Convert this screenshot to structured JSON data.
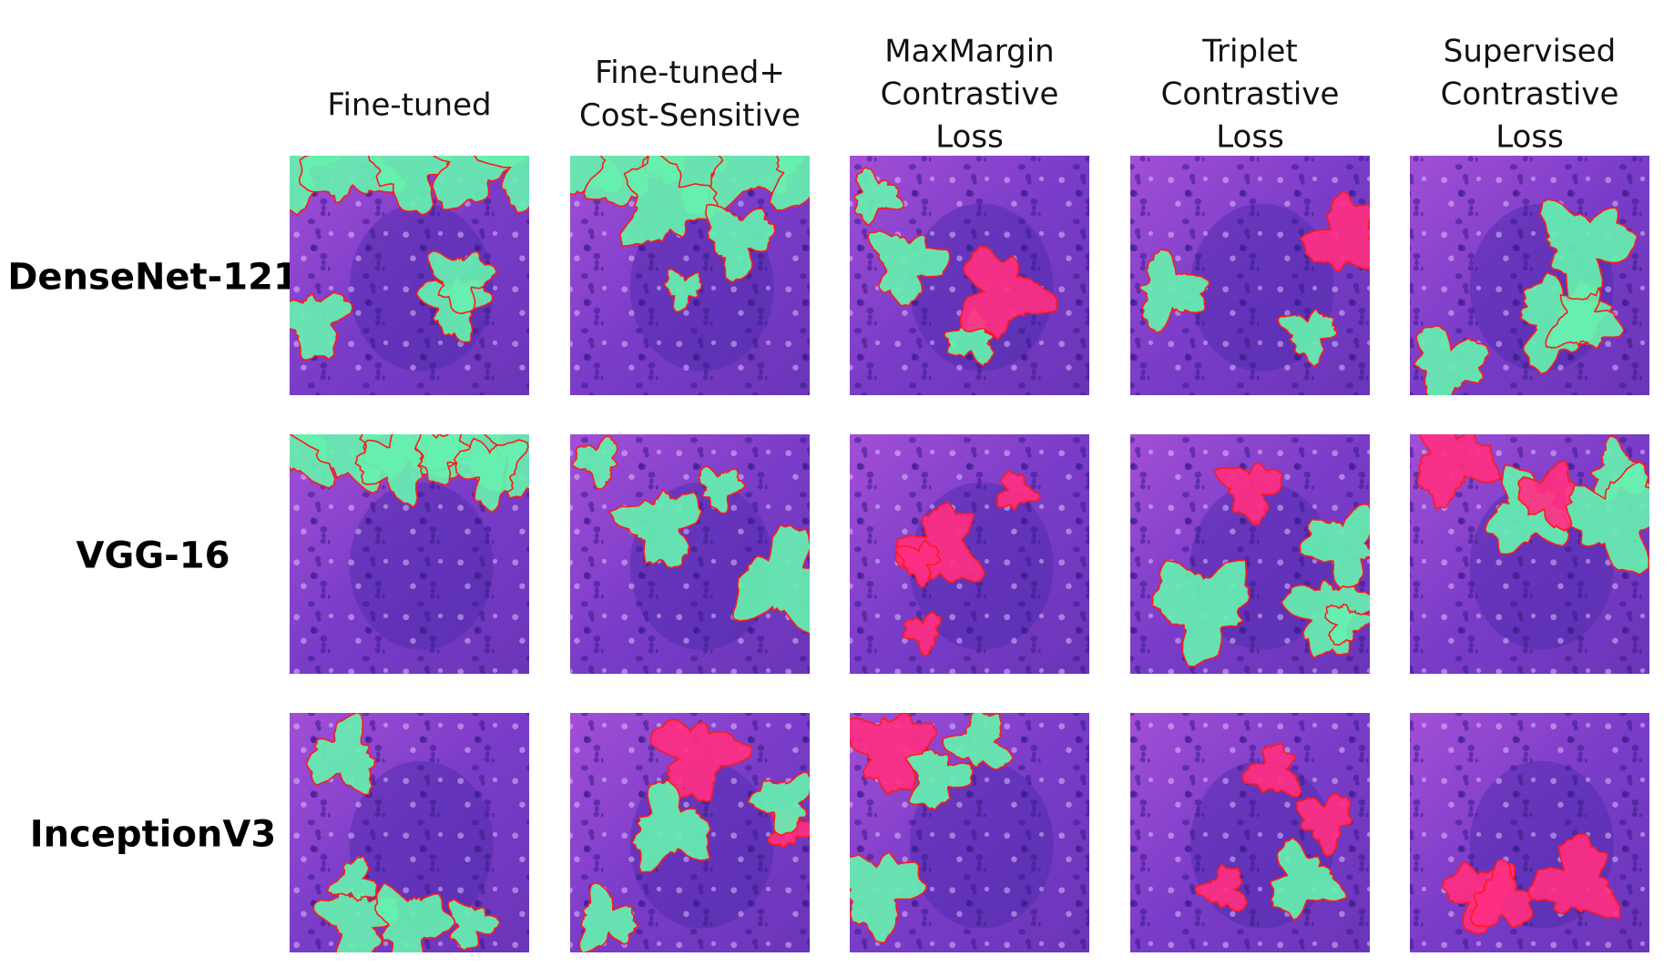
{
  "columns": [
    [
      "Fine-tuned"
    ],
    [
      "Fine-tuned+",
      "Cost-Sensitive"
    ],
    [
      "MaxMargin",
      "Contrastive",
      "Loss"
    ],
    [
      "Triplet",
      "Contrastive",
      "Loss"
    ],
    [
      "Supervised",
      "Contrastive",
      "Loss"
    ]
  ],
  "rows": [
    "DenseNet-121",
    "VGG-16",
    "InceptionV3"
  ]
}
